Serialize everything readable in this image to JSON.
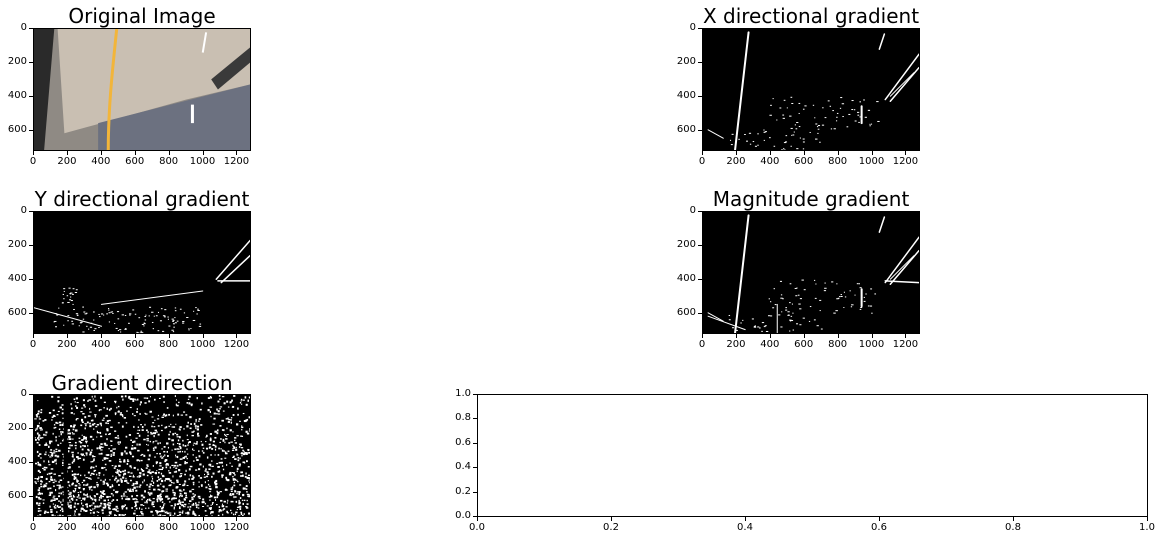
{
  "chart_data": [
    {
      "id": "original",
      "type": "image",
      "title": "Original Image",
      "xticks": [
        "0",
        "200",
        "400",
        "600",
        "800",
        "1000",
        "1200"
      ],
      "yticks": [
        "0",
        "200",
        "400",
        "600"
      ],
      "xlim": [
        0,
        1280
      ],
      "ylim": [
        720,
        0
      ],
      "xtick_values": [
        0,
        200,
        400,
        600,
        800,
        1000,
        1200
      ],
      "ytick_values": [
        0,
        200,
        400,
        600
      ],
      "colors": {
        "road": "#8f8a84",
        "sky": "#c9bfb2",
        "lane_yellow": "#f2b53a",
        "lane_white": "#ffffff",
        "dark": "#2a2a2a"
      }
    },
    {
      "id": "xgrad",
      "type": "image",
      "title": "X directional gradient",
      "xticks": [
        "0",
        "200",
        "400",
        "600",
        "800",
        "1000",
        "1200"
      ],
      "yticks": [
        "0",
        "200",
        "400",
        "600"
      ],
      "xlim": [
        0,
        1280
      ],
      "ylim": [
        720,
        0
      ],
      "xtick_values": [
        0,
        200,
        400,
        600,
        800,
        1000,
        1200
      ],
      "ytick_values": [
        0,
        200,
        400,
        600
      ]
    },
    {
      "id": "ygrad",
      "type": "image",
      "title": "Y directional gradient",
      "xticks": [
        "0",
        "200",
        "400",
        "600",
        "800",
        "1000",
        "1200"
      ],
      "yticks": [
        "0",
        "200",
        "400",
        "600"
      ],
      "xlim": [
        0,
        1280
      ],
      "ylim": [
        720,
        0
      ],
      "xtick_values": [
        0,
        200,
        400,
        600,
        800,
        1000,
        1200
      ],
      "ytick_values": [
        0,
        200,
        400,
        600
      ]
    },
    {
      "id": "maggrad",
      "type": "image",
      "title": "Magnitude gradient",
      "xticks": [
        "0",
        "200",
        "400",
        "600",
        "800",
        "1000",
        "1200"
      ],
      "yticks": [
        "0",
        "200",
        "400",
        "600"
      ],
      "xlim": [
        0,
        1280
      ],
      "ylim": [
        720,
        0
      ],
      "xtick_values": [
        0,
        200,
        400,
        600,
        800,
        1000,
        1200
      ],
      "ytick_values": [
        0,
        200,
        400,
        600
      ]
    },
    {
      "id": "dirgrad",
      "type": "image",
      "title": "Gradient direction",
      "xticks": [
        "0",
        "200",
        "400",
        "600",
        "800",
        "1000",
        "1200"
      ],
      "yticks": [
        "0",
        "200",
        "400",
        "600"
      ],
      "xlim": [
        0,
        1280
      ],
      "ylim": [
        720,
        0
      ],
      "xtick_values": [
        0,
        200,
        400,
        600,
        800,
        1000,
        1200
      ],
      "ytick_values": [
        0,
        200,
        400,
        600
      ]
    },
    {
      "id": "empty",
      "type": "empty",
      "title": "",
      "xticks": [
        "0.0",
        "0.2",
        "0.4",
        "0.6",
        "0.8",
        "1.0"
      ],
      "yticks": [
        "0.0",
        "0.2",
        "0.4",
        "0.6",
        "0.8",
        "1.0"
      ],
      "xlim": [
        0,
        1
      ],
      "ylim": [
        0,
        1
      ],
      "xtick_values": [
        0,
        0.2,
        0.4,
        0.6,
        0.8,
        1.0
      ],
      "ytick_values": [
        0,
        0.2,
        0.4,
        0.6,
        0.8,
        1.0
      ]
    }
  ]
}
